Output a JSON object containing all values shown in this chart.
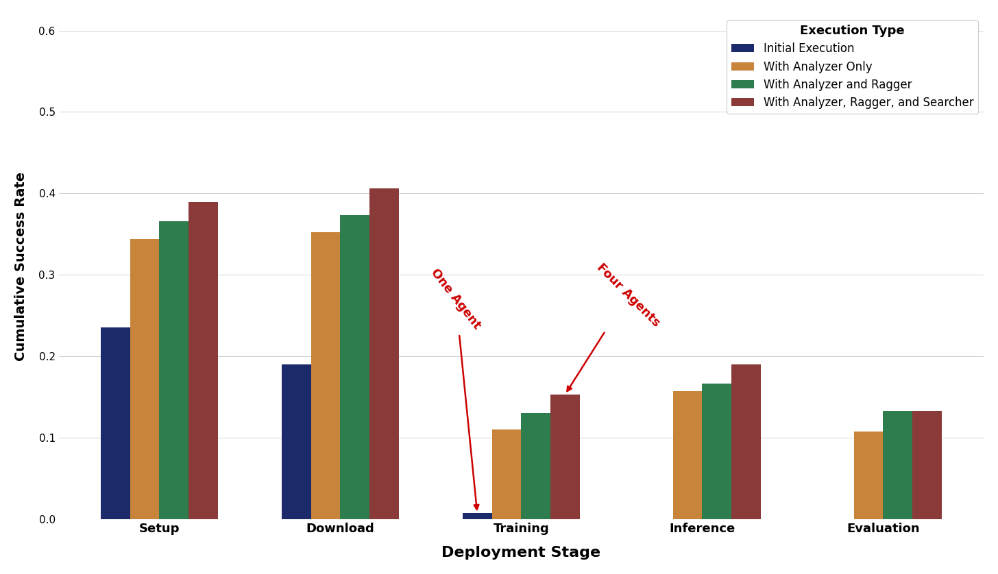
{
  "title": "",
  "xlabel": "Deployment Stage",
  "ylabel": "Cumulative Success Rate",
  "categories": [
    "Setup",
    "Download",
    "Training",
    "Inference",
    "Evaluation"
  ],
  "series": {
    "Initial Execution": [
      0.235,
      0.19,
      0.007,
      0.0,
      0.0
    ],
    "With Analyzer Only": [
      0.344,
      0.352,
      0.11,
      0.157,
      0.107
    ],
    "With Analyzer and Ragger": [
      0.366,
      0.373,
      0.13,
      0.166,
      0.133
    ],
    "With Analyzer, Ragger, and Searcher": [
      0.389,
      0.406,
      0.153,
      0.19,
      0.133
    ]
  },
  "colors": {
    "Initial Execution": "#1b2a6b",
    "With Analyzer Only": "#c8843a",
    "With Analyzer and Ragger": "#2e7d4f",
    "With Analyzer, Ragger, and Searcher": "#8b3a3a"
  },
  "ylim": [
    0,
    0.62
  ],
  "yticks": [
    0.0,
    0.1,
    0.2,
    0.3,
    0.4,
    0.5,
    0.6
  ],
  "legend_title": "Execution Type",
  "annotation_color": "#cc0000",
  "background_color": "#ffffff",
  "grid_color": "#cccccc",
  "bar_width": 0.17,
  "group_positions": [
    0,
    1.05,
    2.1,
    3.15,
    4.2
  ]
}
